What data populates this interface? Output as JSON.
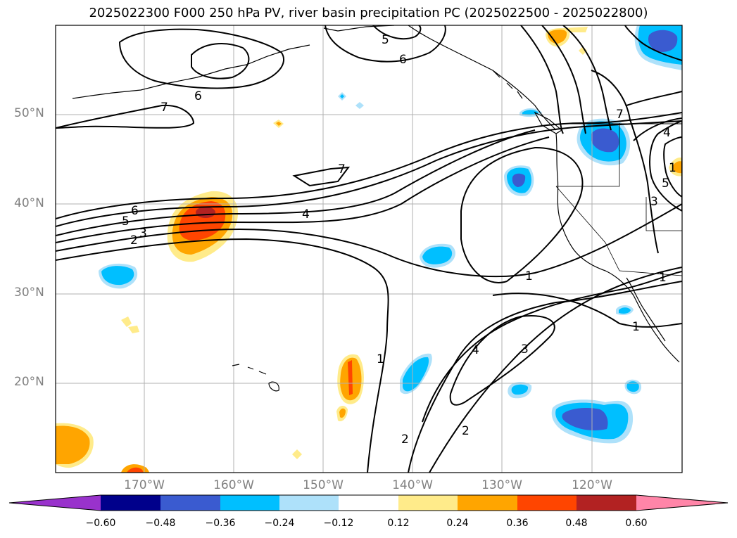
{
  "title": "2025022300 F000 250 hPa PV, river basin precipitation PC (2025022500 - 2025022800)",
  "lat_labels": [
    "50°N",
    "40°N",
    "30°N",
    "20°N"
  ],
  "lon_labels": [
    "170°W",
    "160°W",
    "150°W",
    "140°W",
    "130°W",
    "120°W"
  ],
  "colorbar": {
    "ticks": [
      "−0.60",
      "−0.48",
      "−0.36",
      "−0.24",
      "−0.12",
      "0.12",
      "0.24",
      "0.36",
      "0.48",
      "0.60"
    ],
    "colors": [
      "#9932CC",
      "#00008B",
      "#3A5BD0",
      "#00BFFF",
      "#AEE1FA",
      "#FFFFFF",
      "#FFEB8A",
      "#FFA500",
      "#FF4500",
      "#B22222",
      "#FF85A8"
    ]
  },
  "contour_labels": [
    "5",
    "6",
    "7",
    "6",
    "7",
    "6",
    "5",
    "3",
    "2",
    "4",
    "7",
    "1",
    "1",
    "1",
    "4",
    "3",
    "2",
    "2",
    "1",
    "4",
    "5",
    "3",
    "1"
  ],
  "colors": {
    "grid": "#b0b0b0",
    "axis_label": "#808080",
    "contour": "#000000"
  }
}
